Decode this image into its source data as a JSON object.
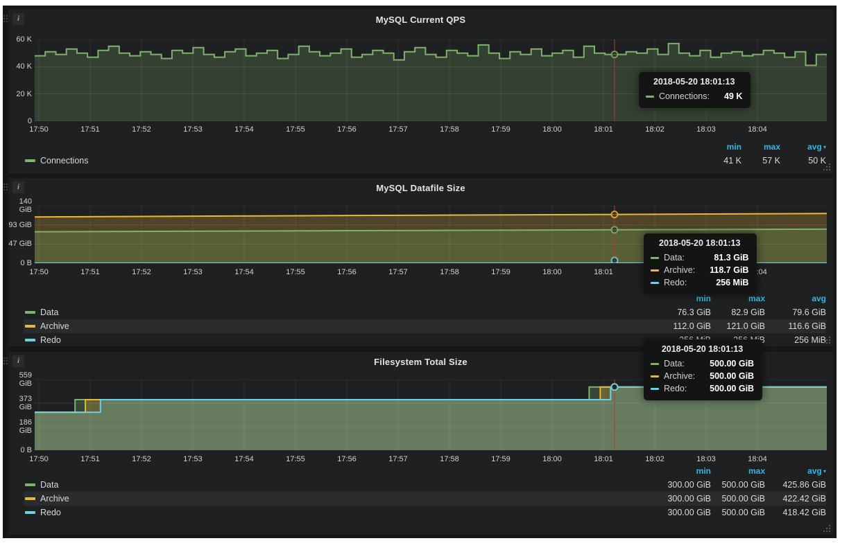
{
  "colors": {
    "green": "#7eb26d",
    "orange": "#eab839",
    "blue": "#6ed0e0",
    "header_blue": "#33b5e5",
    "crosshair_red": "#b23c34",
    "panel_bg": "#1f2022",
    "page_bg": "#161719"
  },
  "x_ticks": [
    "17:50",
    "17:51",
    "17:52",
    "17:53",
    "17:54",
    "17:55",
    "17:56",
    "17:57",
    "17:58",
    "17:59",
    "18:00",
    "18:01",
    "18:02",
    "18:03",
    "18:04"
  ],
  "panels": [
    {
      "title": "MySQL Current QPS",
      "info_icon": "i",
      "y_ticks": [
        "60 K",
        "40 K",
        "20 K",
        "0"
      ],
      "legend": {
        "headers": [
          "min",
          "max",
          "avg"
        ],
        "sort_caret_on": "avg",
        "rows": [
          {
            "name": "Connections",
            "color_key": "green",
            "min": "41 K",
            "max": "57 K",
            "avg": "50 K"
          }
        ]
      },
      "tooltip": {
        "time": "2018-05-20 18:01:13",
        "rows": [
          {
            "label": "Connections:",
            "value": "49 K",
            "color_key": "green"
          }
        ]
      },
      "chart_data": {
        "type": "area",
        "unit": "K (queries per second, thousands)",
        "ymax": 60,
        "y_tick_values": [
          60,
          40,
          20,
          0
        ],
        "x_range": [
          "17:50",
          "18:05"
        ],
        "grid": true,
        "legend_position": "bottom",
        "series": [
          {
            "name": "Connections",
            "color_key": "green",
            "step": true,
            "values": [
              48,
              51,
              49,
              53,
              50,
              47,
              52,
              55,
              50,
              48,
              51,
              49,
              46,
              52,
              50,
              54,
              49,
              47,
              51,
              53,
              48,
              50,
              52,
              46,
              49,
              55,
              51,
              48,
              50,
              53,
              47,
              49,
              52,
              50,
              45,
              51,
              54,
              49,
              47,
              52,
              50,
              48,
              56,
              50,
              46,
              51,
              49,
              53,
              48,
              50,
              52,
              47,
              55,
              50,
              49,
              49,
              51,
              50,
              53,
              49,
              57,
              50,
              48,
              52,
              47,
              50,
              51,
              48,
              49,
              52,
              50,
              47,
              51,
              41,
              49,
              48
            ]
          }
        ],
        "crosshair": {
          "time": "2018-05-20 18:01:13",
          "frac": 0.732,
          "values": [
            49
          ]
        }
      }
    },
    {
      "title": "MySQL Datafile Size",
      "info_icon": "i",
      "y_ticks": [
        "140 GiB",
        "93 GiB",
        "47 GiB",
        "0 B"
      ],
      "legend": {
        "headers": [
          "min",
          "max",
          "avg"
        ],
        "sort_caret_on": "",
        "rows": [
          {
            "name": "Data",
            "color_key": "green",
            "min": "76.3 GiB",
            "max": "82.9 GiB",
            "avg": "79.6 GiB"
          },
          {
            "name": "Archive",
            "color_key": "orange",
            "min": "112.0 GiB",
            "max": "121.0 GiB",
            "avg": "116.6 GiB"
          },
          {
            "name": "Redo",
            "color_key": "blue",
            "min": "256 MiB",
            "max": "256 MiB",
            "avg": "256 MiB"
          }
        ]
      },
      "tooltip": {
        "time": "2018-05-20 18:01:13",
        "rows": [
          {
            "label": "Data:",
            "value": "81.3 GiB",
            "color_key": "green"
          },
          {
            "label": "Archive:",
            "value": "118.7 GiB",
            "color_key": "orange"
          },
          {
            "label": "Redo:",
            "value": "256 MiB",
            "color_key": "blue"
          }
        ]
      },
      "chart_data": {
        "type": "area",
        "unit": "GiB",
        "ymax": 140,
        "y_tick_values": [
          140,
          93,
          47,
          0
        ],
        "x_range": [
          "17:50",
          "18:05"
        ],
        "grid": true,
        "legend_position": "bottom",
        "series": [
          {
            "name": "Archive",
            "color_key": "orange",
            "points": [
              [
                0,
                112.5
              ],
              [
                0.25,
                114.8
              ],
              [
                0.5,
                116.9
              ],
              [
                0.732,
                118.7
              ],
              [
                1,
                121.0
              ]
            ]
          },
          {
            "name": "Data",
            "color_key": "green",
            "points": [
              [
                0,
                76.5
              ],
              [
                0.25,
                78.2
              ],
              [
                0.5,
                79.8
              ],
              [
                0.732,
                81.3
              ],
              [
                1,
                82.9
              ]
            ]
          },
          {
            "name": "Redo",
            "color_key": "blue",
            "points": [
              [
                0,
                0.25
              ],
              [
                1,
                0.25
              ]
            ]
          }
        ],
        "crosshair": {
          "time": "2018-05-20 18:01:13",
          "frac": 0.732,
          "values": [
            118.7,
            81.3,
            0.25
          ]
        }
      }
    },
    {
      "title": "Filesystem Total Size",
      "info_icon": "i",
      "y_ticks": [
        "559 GiB",
        "373 GiB",
        "186 GiB",
        "0 B"
      ],
      "legend": {
        "headers": [
          "min",
          "max",
          "avg"
        ],
        "sort_caret_on": "avg",
        "rows": [
          {
            "name": "Data",
            "color_key": "green",
            "min": "300.00 GiB",
            "max": "500.00 GiB",
            "avg": "425.86 GiB"
          },
          {
            "name": "Archive",
            "color_key": "orange",
            "min": "300.00 GiB",
            "max": "500.00 GiB",
            "avg": "422.42 GiB"
          },
          {
            "name": "Redo",
            "color_key": "blue",
            "min": "300.00 GiB",
            "max": "500.00 GiB",
            "avg": "418.42 GiB"
          }
        ]
      },
      "tooltip": {
        "time": "2018-05-20 18:01:13",
        "rows": [
          {
            "label": "Data:",
            "value": "500.00 GiB",
            "color_key": "green"
          },
          {
            "label": "Archive:",
            "value": "500.00 GiB",
            "color_key": "orange"
          },
          {
            "label": "Redo:",
            "value": "500.00 GiB",
            "color_key": "blue"
          }
        ]
      },
      "chart_data": {
        "type": "area",
        "unit": "GiB",
        "ymax": 559,
        "y_tick_values": [
          559,
          373,
          186,
          0
        ],
        "x_range": [
          "17:50",
          "18:05"
        ],
        "grid": true,
        "legend_position": "bottom",
        "series": [
          {
            "name": "Data",
            "color_key": "green",
            "points": [
              [
                0,
                300
              ],
              [
                0.051,
                300
              ],
              [
                0.051,
                400
              ],
              [
                0.7,
                400
              ],
              [
                0.7,
                500
              ],
              [
                1,
                500
              ]
            ]
          },
          {
            "name": "Archive",
            "color_key": "orange",
            "points": [
              [
                0,
                300
              ],
              [
                0.064,
                300
              ],
              [
                0.064,
                400
              ],
              [
                0.714,
                400
              ],
              [
                0.714,
                500
              ],
              [
                1,
                500
              ]
            ]
          },
          {
            "name": "Redo",
            "color_key": "blue",
            "points": [
              [
                0,
                300
              ],
              [
                0.083,
                300
              ],
              [
                0.083,
                400
              ],
              [
                0.727,
                400
              ],
              [
                0.727,
                500
              ],
              [
                1,
                500
              ]
            ]
          }
        ],
        "crosshair": {
          "time": "2018-05-20 18:01:13",
          "frac": 0.732,
          "values": [
            500,
            500,
            500
          ]
        }
      }
    }
  ]
}
